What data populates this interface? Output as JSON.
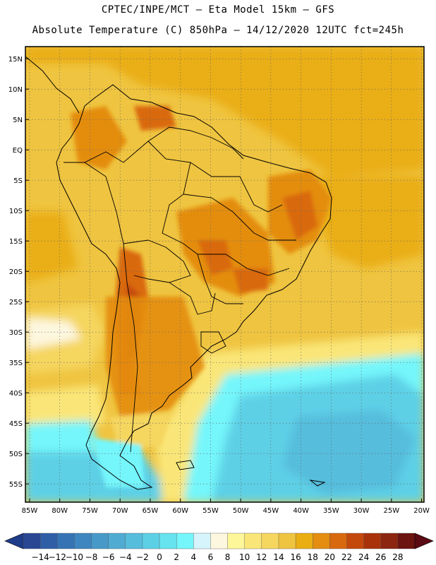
{
  "title": {
    "line1": "CPTEC/INPE/MCT –  Eta Model 15km – GFS",
    "line2": "Absolute Temperature (C) 850hPa – 14/12/2020 12UTC fct=245h"
  },
  "map": {
    "region": "South America",
    "lat_labels": [
      "15N",
      "10N",
      "5N",
      "EQ",
      "5S",
      "10S",
      "15S",
      "20S",
      "25S",
      "30S",
      "35S",
      "40S",
      "45S",
      "50S",
      "55S"
    ],
    "lon_labels": [
      "85W",
      "80W",
      "75W",
      "70W",
      "65W",
      "60W",
      "55W",
      "50W",
      "45W",
      "40W",
      "35W",
      "30W",
      "25W",
      "20W"
    ],
    "lat_range": [
      17,
      -58
    ],
    "lon_range": [
      -85.7,
      -19.6
    ]
  },
  "colorbar": {
    "labels": [
      "-14",
      "-12",
      "-10",
      "-8",
      "-6",
      "-4",
      "-2",
      "0",
      "2",
      "4",
      "6",
      "8",
      "10",
      "12",
      "14",
      "16",
      "18",
      "20",
      "22",
      "24",
      "26",
      "28"
    ],
    "colors": [
      "#2a4794",
      "#2f5ea6",
      "#3673b4",
      "#3d86c0",
      "#4799c8",
      "#50abd2",
      "#56bddd",
      "#5dd0e6",
      "#66e3ee",
      "#74f6fb",
      "#d6f4fb",
      "#fdf7df",
      "#fdf79a",
      "#fae678",
      "#f5d65f",
      "#efc440",
      "#eaae13",
      "#e48d11",
      "#d9690e",
      "#c4480c",
      "#a9320b",
      "#8c2610",
      "#6b1410"
    ],
    "below_color": "#1f3c8a",
    "above_color": "#5b0b13"
  }
}
